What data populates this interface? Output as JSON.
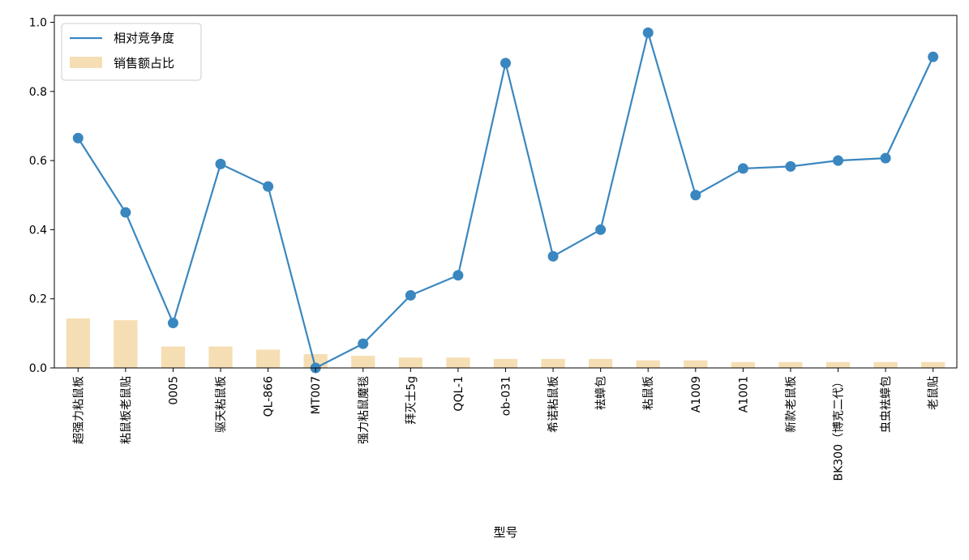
{
  "chart_data": {
    "type": "bar+line",
    "xlabel": "型号",
    "ylabel": "",
    "ylim": [
      0,
      1.02
    ],
    "yticks": [
      0.0,
      0.2,
      0.4,
      0.6,
      0.8,
      1.0
    ],
    "grid": false,
    "legend_position": "top-left",
    "categories": [
      "超强力粘鼠板",
      "粘鼠板老鼠贴",
      "0005",
      "驱天粘鼠板",
      "QL-866",
      "MT007",
      "强力粘鼠魔毯",
      "拜灭士5g",
      "QQL-1",
      "ob-031",
      "希诺粘鼠板",
      "袪蟑包",
      "粘鼠板",
      "A1009",
      "A1001",
      "新款老鼠板",
      "BK300（博克二代）",
      "虫虫袪蟑包",
      "老鼠贴"
    ],
    "series": [
      {
        "name": "相对竞争度",
        "kind": "line",
        "color": "#3a87c0",
        "values": [
          0.665,
          0.45,
          0.13,
          0.59,
          0.525,
          0.0,
          0.07,
          0.21,
          0.268,
          0.882,
          0.323,
          0.4,
          0.97,
          0.5,
          0.577,
          0.583,
          0.6,
          0.607,
          0.9
        ]
      },
      {
        "name": "销售额占比",
        "kind": "bar",
        "color": "#f5deb3",
        "values": [
          0.143,
          0.138,
          0.062,
          0.062,
          0.053,
          0.04,
          0.035,
          0.03,
          0.03,
          0.026,
          0.026,
          0.026,
          0.022,
          0.022,
          0.017,
          0.017,
          0.017,
          0.017,
          0.017
        ]
      }
    ]
  }
}
